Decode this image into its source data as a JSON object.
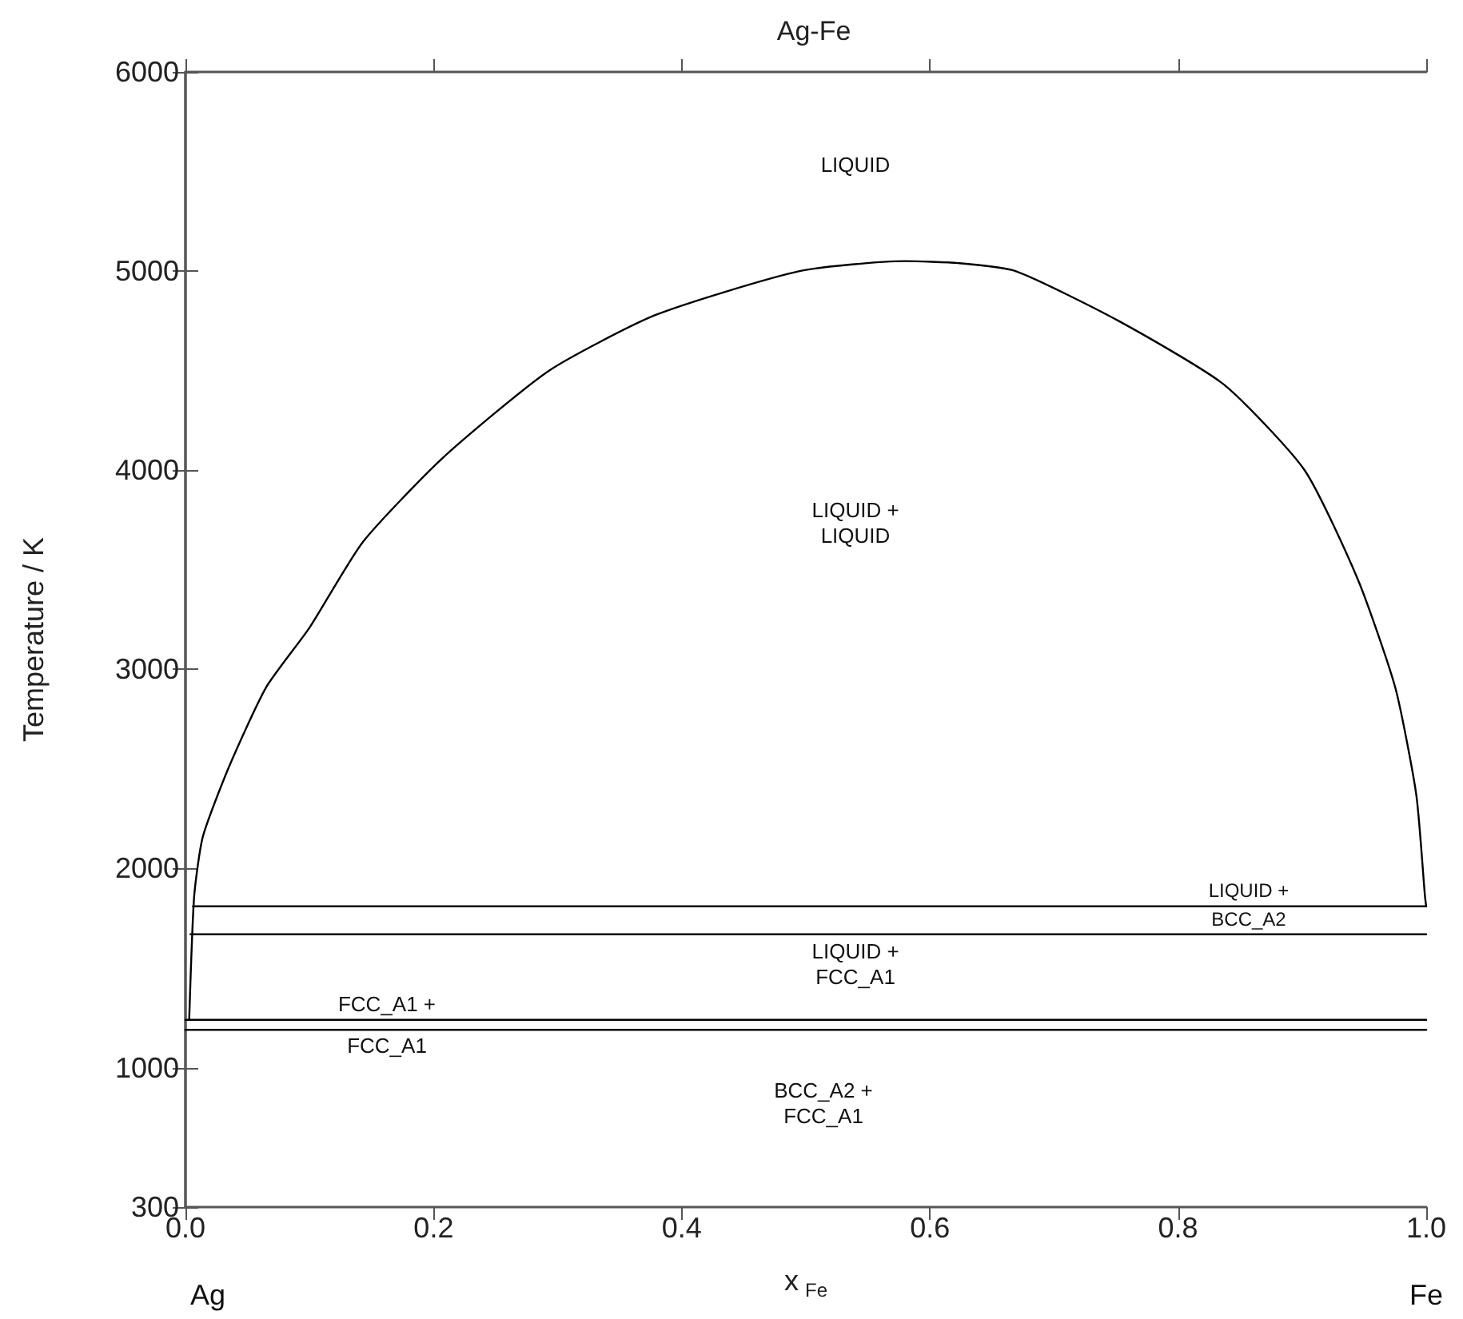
{
  "chart_data": {
    "type": "line",
    "title": "Ag-Fe",
    "xlabel": "x$_{Fe}$",
    "ylabel": "Temperature / K",
    "series": [
      {
        "color": "#000000",
        "x": [
          0.003,
          0.007,
          0.014,
          0.035,
          0.065,
          0.1,
          0.143,
          0.207,
          0.293,
          0.379,
          0.495,
          0.58,
          0.623,
          0.669,
          0.752,
          0.837,
          0.902,
          0.945,
          0.975,
          0.992,
          0.999,
          1.0
        ],
        "values": [
          1240,
          1860,
          2160,
          2510,
          2910,
          3210,
          3640,
          4060,
          4500,
          4780,
          5000,
          5050,
          5040,
          5000,
          4750,
          4430,
          4000,
          3450,
          2910,
          2370,
          1860,
          1810
        ]
      },
      {
        "color": "#000000",
        "x": [
          0.006,
          1.0
        ],
        "values": [
          1810,
          1810
        ]
      },
      {
        "color": "#000000",
        "x": [
          0.004,
          1.0
        ],
        "values": [
          1670,
          1670
        ]
      },
      {
        "color": "#000000",
        "x": [
          0.0,
          1.0
        ],
        "values": [
          1240,
          1240
        ]
      },
      {
        "color": "#000000",
        "x": [
          0.0,
          1.0
        ],
        "values": [
          1190,
          1190
        ]
      }
    ],
    "xlim": [
      0,
      1
    ],
    "xticks": [
      {
        "value": 0,
        "label": "0.0"
      },
      0.2,
      0.4,
      0.6,
      0.8,
      {
        "value": 1,
        "label": "1.0"
      }
    ],
    "ylim": [
      300,
      6000
    ],
    "yticks": [
      300,
      1000,
      2000,
      3000,
      4000,
      5000,
      6000
    ],
    "grid": false,
    "marker": "none",
    "line_style": "solid",
    "annotations": [
      "LIQUID",
      "LIQUID +\nLIQUID",
      "LIQUID +\nBCC_A2",
      "LIQUID +\nFCC_A1",
      "FCC_A1 +\nFCC_A1",
      "BCC_A2 +\nFCC_A1",
      "Ag",
      "Fe"
    ]
  }
}
